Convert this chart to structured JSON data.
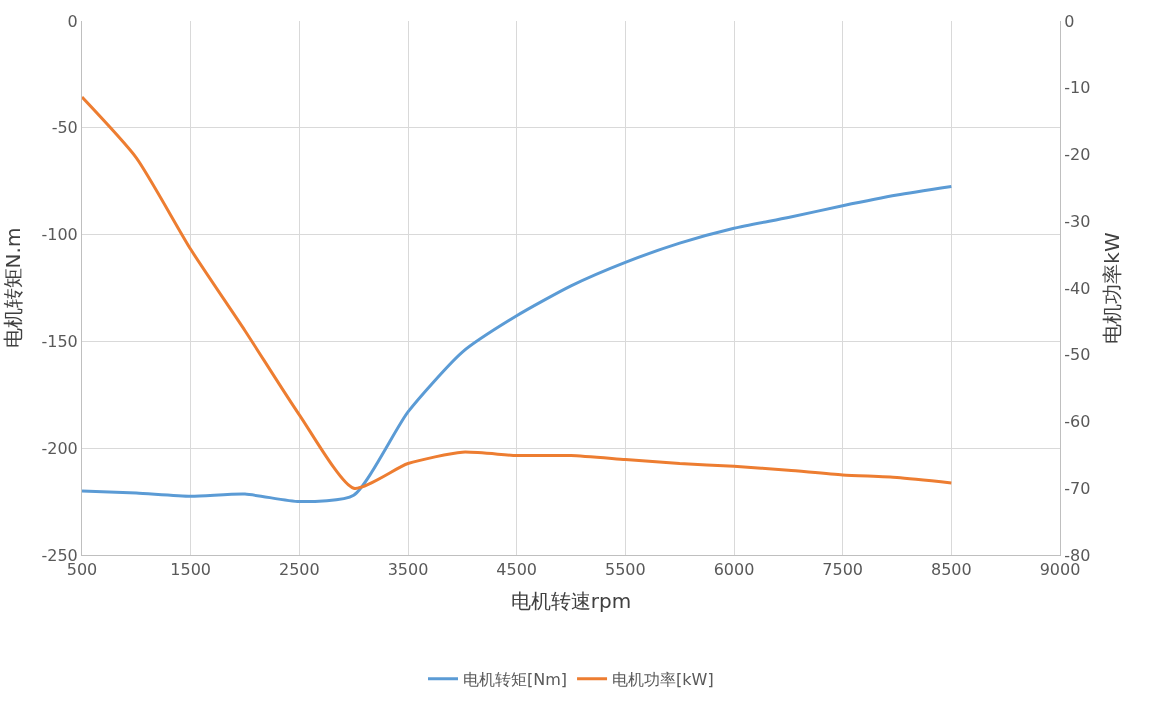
{
  "chart_data": {
    "type": "line",
    "xlabel": "电机转速rpm",
    "ylabel": "电机转矩N.m",
    "y2label": "电机功率kW",
    "categories": [
      "500",
      null,
      "1500",
      null,
      "2500",
      null,
      "3500",
      null,
      "4500",
      null,
      "5500",
      null,
      "6000",
      null,
      "7500",
      null,
      "8500",
      null,
      "9000"
    ],
    "series": [
      {
        "name": "电机转矩[Nm]",
        "color": "#5b9bd5",
        "values": [
          -220,
          -221,
          -222.5,
          -221.5,
          -225,
          -222,
          -183,
          -155,
          -138,
          -124,
          -113,
          -104,
          -97,
          -92,
          -86.5,
          -81.5,
          -77.5,
          null,
          null
        ]
      },
      {
        "name": "电机功率[kW]",
        "color": "#ed7d31",
        "axis": "y2",
        "values": [
          -11.4,
          -20.5,
          -34.2,
          -46.4,
          -59,
          -70,
          -66.3,
          -64.6,
          -65.1,
          -65.1,
          -65.7,
          -66.3,
          -66.7,
          -67.3,
          -68,
          -68.4,
          -69.2,
          null,
          null
        ]
      }
    ],
    "ylim": [
      -250,
      0
    ],
    "yticks": [
      -250,
      -200,
      -150,
      -100,
      -50,
      0
    ],
    "y2lim": [
      -80,
      0
    ],
    "y2ticks": [
      -80,
      -70,
      -60,
      -50,
      -40,
      -30,
      -20,
      -10,
      0
    ],
    "grid": true,
    "legend": "bottom",
    "line_style": "solid",
    "marker": "none"
  }
}
